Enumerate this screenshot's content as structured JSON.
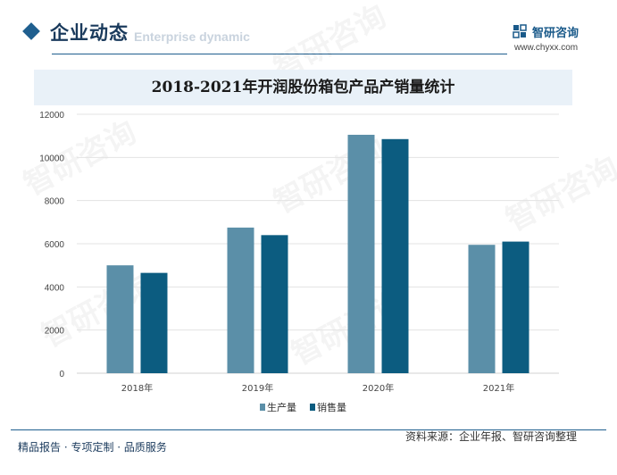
{
  "header": {
    "section_title": "企业动态",
    "section_subtitle": "Enterprise dynamic",
    "logo_name": "智研咨询",
    "logo_url": "www.chyxx.com"
  },
  "watermark_text": "智研咨询",
  "chart_data": {
    "type": "bar",
    "title": "2018-2021年开润股份箱包产品产销量统计",
    "categories": [
      "2018年",
      "2019年",
      "2020年",
      "2021年"
    ],
    "series": [
      {
        "name": "生产量",
        "values": [
          5000,
          6750,
          11050,
          5950
        ],
        "color": "#5b8fa8"
      },
      {
        "name": "销售量",
        "values": [
          4650,
          6400,
          10850,
          6100
        ],
        "color": "#0c5c80"
      }
    ],
    "xlabel": "",
    "ylabel": "",
    "ylim": [
      0,
      12000
    ],
    "yticks": [
      "0",
      "2000",
      "4000",
      "6000",
      "8000",
      "10000",
      "12000"
    ],
    "grid": true,
    "legend_position": "bottom"
  },
  "footer": {
    "left": "精品报告 · 专项定制 · 品质服务",
    "source": "资料来源：企业年报、智研咨询整理"
  }
}
